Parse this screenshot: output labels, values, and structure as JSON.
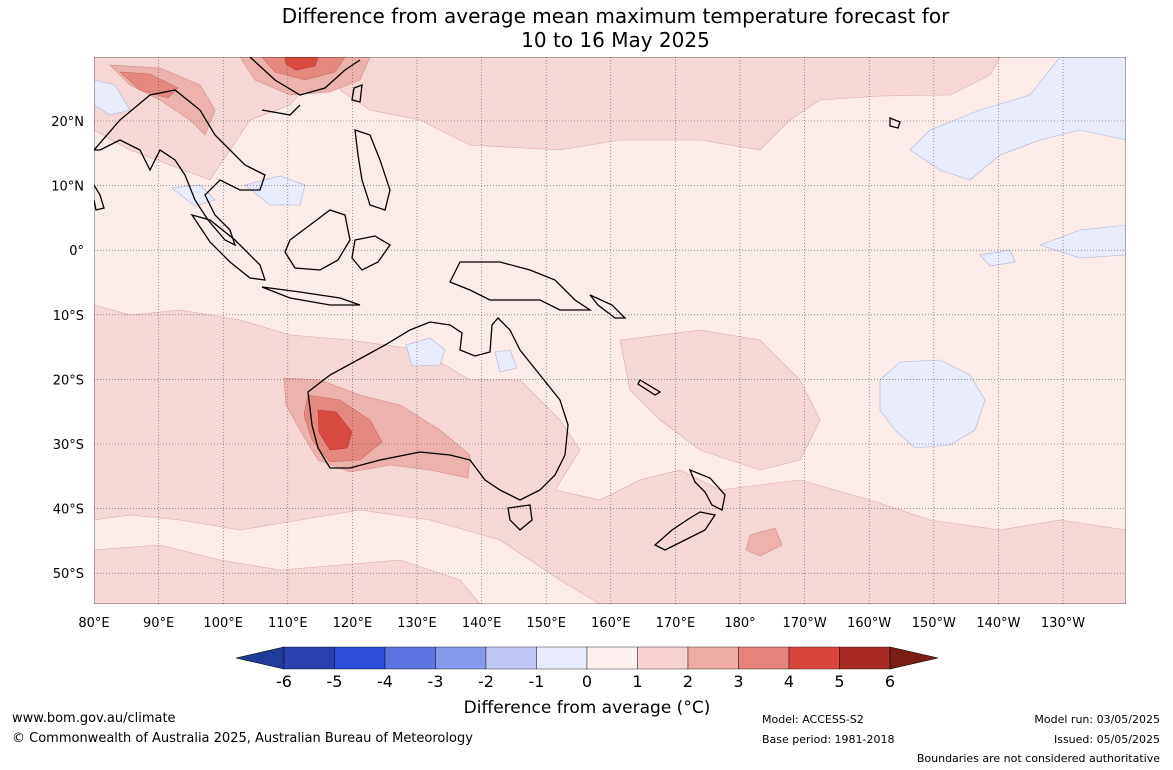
{
  "title": {
    "line1": "Difference from average mean maximum temperature forecast for",
    "line2": "10 to 16 May 2025"
  },
  "map": {
    "lon_labels": [
      "80°E",
      "90°E",
      "100°E",
      "110°E",
      "120°E",
      "130°E",
      "140°E",
      "150°E",
      "160°E",
      "170°E",
      "180°",
      "170°W",
      "160°W",
      "150°W",
      "140°W",
      "130°W"
    ],
    "lat_labels": [
      "20°N",
      "10°N",
      "0°",
      "10°S",
      "20°S",
      "30°S",
      "40°S",
      "50°S"
    ],
    "colors": {
      "ocean_base": "#fbebe9",
      "warm_1_2": "#f5d7d5",
      "warm_2_3": "#eeb2ae",
      "warm_3_4": "#e48880",
      "warm_4_5": "#d94b3f",
      "cool_0_1": "#e7ebfa",
      "coast": "#000000",
      "grid": "#555555"
    }
  },
  "colorbar": {
    "ticks": [
      "-6",
      "-5",
      "-4",
      "-3",
      "-2",
      "-1",
      "0",
      "1",
      "2",
      "3",
      "4",
      "5",
      "6"
    ],
    "colors": [
      "#213b9a",
      "#2c3eb0",
      "#2d50d8",
      "#5d74e3",
      "#8799ea",
      "#c0c8f3",
      "#e8ebfb",
      "#fdf0ee",
      "#f6d3d0",
      "#eeaba5",
      "#e5837b",
      "#d9473c",
      "#a82a23",
      "#7a1d17"
    ],
    "title": "Difference from average (",
    "title_unit": "°C",
    "title_close": ")"
  },
  "footer": {
    "url": "www.bom.gov.au/climate",
    "copyright": "© Commonwealth of Australia 2025, Australian Bureau of Meteorology",
    "model": "Model: ACCESS-S2",
    "base_period": "Base period: 1981-2018",
    "model_run": "Model run: 03/05/2025",
    "issued": "Issued: 05/05/2025",
    "disclaimer": "Boundaries are not considered authoritative"
  }
}
